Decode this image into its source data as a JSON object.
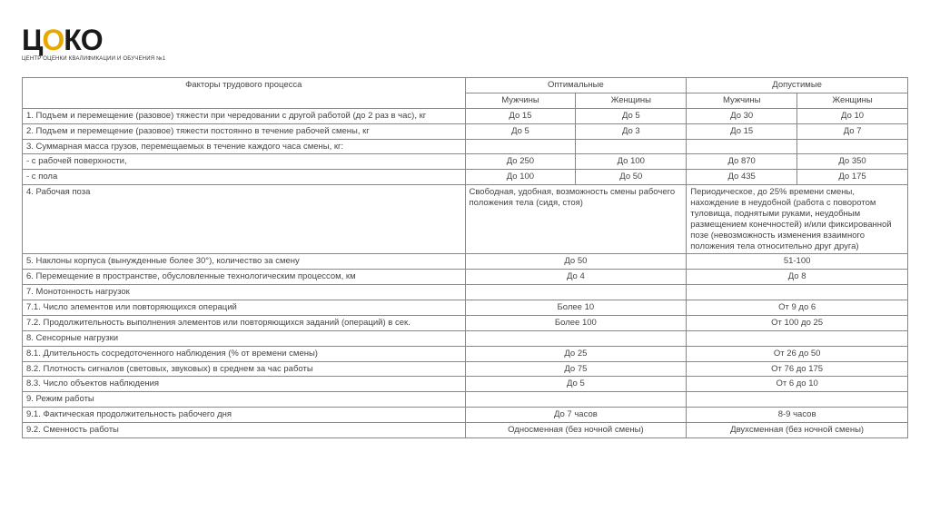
{
  "logo": {
    "text_pre": "Ц",
    "text_accent": "О",
    "text_post": "КО",
    "subtitle": "ЦЕНТР ОЦЕНКИ КВАЛИФИКАЦИИ И ОБУЧЕНИЯ №1"
  },
  "table": {
    "header": {
      "factors": "Факторы трудового процесса",
      "optimal": "Оптимальные",
      "acceptable": "Допустимые",
      "men": "Мужчины",
      "women": "Женщины"
    },
    "rows": {
      "r1": {
        "label": "1. Подъем и перемещение (разовое) тяжести при чередовании с другой работой (до 2 раз в час), кг",
        "om": "До 15",
        "ow": "До 5",
        "am": "До 30",
        "aw": "До 10"
      },
      "r2": {
        "label": "2. Подъем и перемещение (разовое) тяжести постоянно в течение рабочей смены, кг",
        "om": "До 5",
        "ow": "До 3",
        "am": "До 15",
        "aw": "До 7"
      },
      "r3": {
        "label": "3. Суммарная масса грузов, перемещаемых в течение каждого часа смены, кг:"
      },
      "r3a": {
        "label": "- с рабочей поверхности,",
        "om": "До 250",
        "ow": "До 100",
        "am": "До 870",
        "aw": "До 350"
      },
      "r3b": {
        "label": "- с пола",
        "om": "До 100",
        "ow": "До 50",
        "am": "До 435",
        "aw": "До 175"
      },
      "r4": {
        "label": "4. Рабочая поза",
        "opt": "Свободная, удобная, возможность смены рабочего положения тела (сидя, стоя)",
        "acc": "Периодическое, до 25% времени смены, нахождение в неудобной (работа с поворотом туловища, поднятыми руками, неудобным размещением конечностей) и/или фиксированной позе (невозможность изменения взаимного положения тела относительно друг друга)"
      },
      "r5": {
        "label": "5. Наклоны корпуса (вынужденные более 30°), количество за смену",
        "opt": "До 50",
        "acc": "51-100"
      },
      "r6": {
        "label": "6. Перемещение в пространстве, обусловленные технологическим процессом, км",
        "opt": "До 4",
        "acc": "До 8"
      },
      "r7": {
        "label": "7. Монотонность нагрузок"
      },
      "r7_1": {
        "label": "7.1. Число элементов или повторяющихся операций",
        "opt": "Более 10",
        "acc": "От 9 до 6"
      },
      "r7_2": {
        "label": "7.2. Продолжительность выполнения элементов или повторяющихся заданий (операций) в сек.",
        "opt": "Более 100",
        "acc": "От 100 до 25"
      },
      "r8": {
        "label": "8. Сенсорные нагрузки"
      },
      "r8_1": {
        "label": "8.1. Длительность сосредоточенного наблюдения (% от времени смены)",
        "opt": "До 25",
        "acc": "От 26 до 50"
      },
      "r8_2": {
        "label": "8.2. Плотность сигналов (световых, звуковых) в среднем за час работы",
        "opt": "До 75",
        "acc": "От 76 до 175"
      },
      "r8_3": {
        "label": "8.3. Число объектов наблюдения",
        "opt": "До 5",
        "acc": "От 6 до 10"
      },
      "r9": {
        "label": "9. Режим работы"
      },
      "r9_1": {
        "label": "9.1. Фактическая продолжительность рабочего дня",
        "opt": "До 7 часов",
        "acc": "8-9 часов"
      },
      "r9_2": {
        "label": "9.2. Сменность работы",
        "opt": "Односменная (без ночной смены)",
        "acc": "Двухсменная (без ночной смены)"
      }
    }
  }
}
